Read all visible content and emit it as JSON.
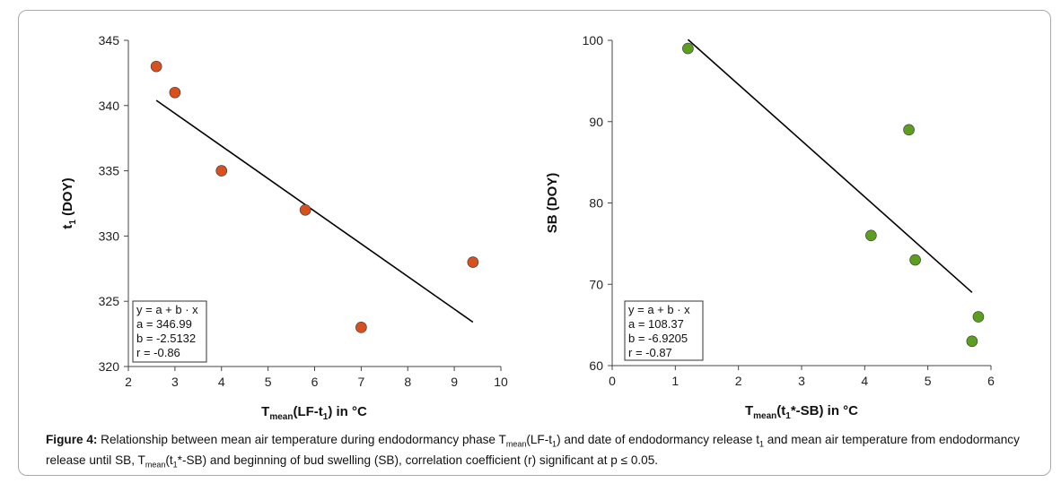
{
  "chart_data": [
    {
      "type": "scatter",
      "xlabel": {
        "main": "T",
        "sub": "mean",
        "rest": "(LF-t",
        "rest_sub": "1",
        "tail": ") in °C"
      },
      "ylabel": {
        "main": "t",
        "sub": "1",
        "rest": " (DOY)"
      },
      "xlim": [
        2,
        10
      ],
      "ylim": [
        320,
        345
      ],
      "xticks": [
        "2",
        "3",
        "4",
        "5",
        "6",
        "7",
        "8",
        "9",
        "10"
      ],
      "yticks": [
        "320",
        "325",
        "330",
        "335",
        "340",
        "345"
      ],
      "marker_color": "#d9501f",
      "points": [
        {
          "x": 2.6,
          "y": 343
        },
        {
          "x": 3.0,
          "y": 341
        },
        {
          "x": 4.0,
          "y": 335
        },
        {
          "x": 5.8,
          "y": 332
        },
        {
          "x": 7.0,
          "y": 323
        },
        {
          "x": 9.4,
          "y": 328
        }
      ],
      "fit_line": {
        "x": [
          2.6,
          9.4
        ],
        "y": [
          340.4,
          323.4
        ]
      },
      "stats": [
        "y = a + b · x",
        "a = 346.99",
        "b = -2.5132",
        "r = -0.86"
      ]
    },
    {
      "type": "scatter",
      "xlabel": {
        "main": "T",
        "sub": "mean",
        "rest": "(t",
        "rest_sub": "1",
        "tail": "*-SB) in °C"
      },
      "ylabel": {
        "main": "SB (DOY)",
        "sub": "",
        "rest": ""
      },
      "xlim": [
        0,
        6
      ],
      "ylim": [
        60,
        100
      ],
      "xticks": [
        "0",
        "1",
        "2",
        "3",
        "4",
        "5",
        "6"
      ],
      "yticks": [
        "60",
        "70",
        "80",
        "90",
        "100"
      ],
      "marker_color": "#5c9e1e",
      "points": [
        {
          "x": 1.2,
          "y": 99
        },
        {
          "x": 4.1,
          "y": 76
        },
        {
          "x": 4.7,
          "y": 89
        },
        {
          "x": 4.8,
          "y": 73
        },
        {
          "x": 5.7,
          "y": 63
        },
        {
          "x": 5.8,
          "y": 66
        }
      ],
      "fit_line": {
        "x": [
          1.2,
          5.7
        ],
        "y": [
          100.1,
          69.0
        ]
      },
      "stats": [
        "y = a + b · x",
        "a = 108.37",
        "b = -6.9205",
        "r = -0.87"
      ]
    }
  ],
  "caption": {
    "label": "Figure 4:",
    "p1": " Relationship between mean air temperature during endodormancy phase T",
    "s1": "mean",
    "p2": "(LF-t",
    "s2": "1",
    "p3": ") and date of endodormancy release t",
    "s3": "1",
    "p4": " and mean air temperature from endodormancy release until SB, T",
    "s4": "mean",
    "p5": "(t",
    "s5": "1",
    "p6": "*-SB) and beginning of bud swelling (SB), correlation coefficient (r) significant at p ≤ 0.05."
  }
}
